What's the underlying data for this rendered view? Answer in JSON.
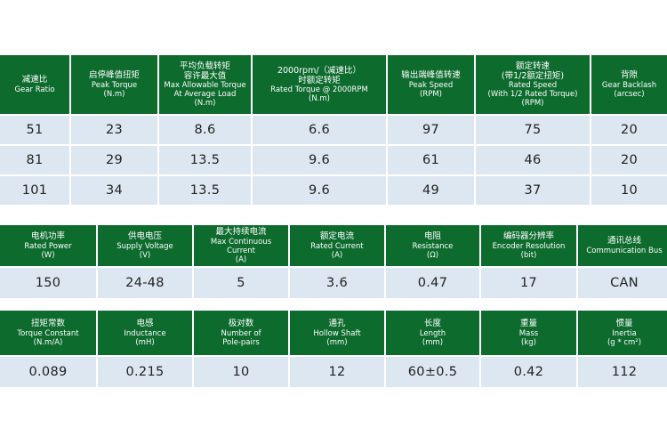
{
  "table1": {
    "headers": [
      [
        "减速比",
        "Gear Ratio"
      ],
      [
        "启停峰值扭矩",
        "Peak Torque",
        "(N.m)"
      ],
      [
        "平均负载转矩",
        "容许最大值",
        "Max Allowable Torque",
        "At Average Load",
        "(N.m)"
      ],
      [
        "2000rpm/（减速比）",
        "时额定转矩",
        "Rated Torque @ 2000RPM",
        "(N.m)"
      ],
      [
        "输出端峰值转速",
        "Peak Speed",
        "(RPM)"
      ],
      [
        "额定转速",
        "(带1/2额定扭矩)",
        "Rated Speed",
        "(With 1/2 Rated Torque)",
        "(RPM)"
      ],
      [
        "背隙",
        "Gear Backlash",
        "(arcsec)"
      ]
    ],
    "rows": [
      [
        "51",
        "23",
        "8.6",
        "6.6",
        "97",
        "75",
        "20"
      ],
      [
        "81",
        "29",
        "13.5",
        "9.6",
        "61",
        "46",
        "20"
      ],
      [
        "101",
        "34",
        "13.5",
        "9.6",
        "49",
        "37",
        "10"
      ]
    ]
  },
  "table2": {
    "headers": [
      [
        "电机功率",
        "Rated Power",
        "(W)"
      ],
      [
        "供电电压",
        "Supply Voltage",
        "(V)"
      ],
      [
        "最大持续电流",
        "Max Continuous",
        "Current",
        "(A)"
      ],
      [
        "额定电流",
        "Rated Current",
        "(A)"
      ],
      [
        "电阻",
        "Resistance",
        "(Ω)"
      ],
      [
        "编码器分辨率",
        "Encoder Resolution",
        "(bit)"
      ],
      [
        "通讯总线",
        "Communication Bus"
      ]
    ],
    "rows": [
      [
        "150",
        "24-48",
        "5",
        "3.6",
        "0.47",
        "17",
        "CAN"
      ]
    ]
  },
  "table3": {
    "headers": [
      [
        "扭矩常数",
        "Torque Constant",
        "(N.m/A)"
      ],
      [
        "电感",
        "Inductance",
        "(mH)"
      ],
      [
        "极对数",
        "Number of",
        "Pole-pairs"
      ],
      [
        "通孔",
        "Hollow Shaft",
        "(mm)"
      ],
      [
        "长度",
        "Length",
        "(mm)"
      ],
      [
        "重量",
        "Mass",
        "(kg)"
      ],
      [
        "惯量",
        "Inertia",
        "(g * cm²)"
      ]
    ],
    "rows": [
      [
        "0.089",
        "0.215",
        "10",
        "12",
        "60±0.5",
        "0.42",
        "112"
      ]
    ]
  }
}
